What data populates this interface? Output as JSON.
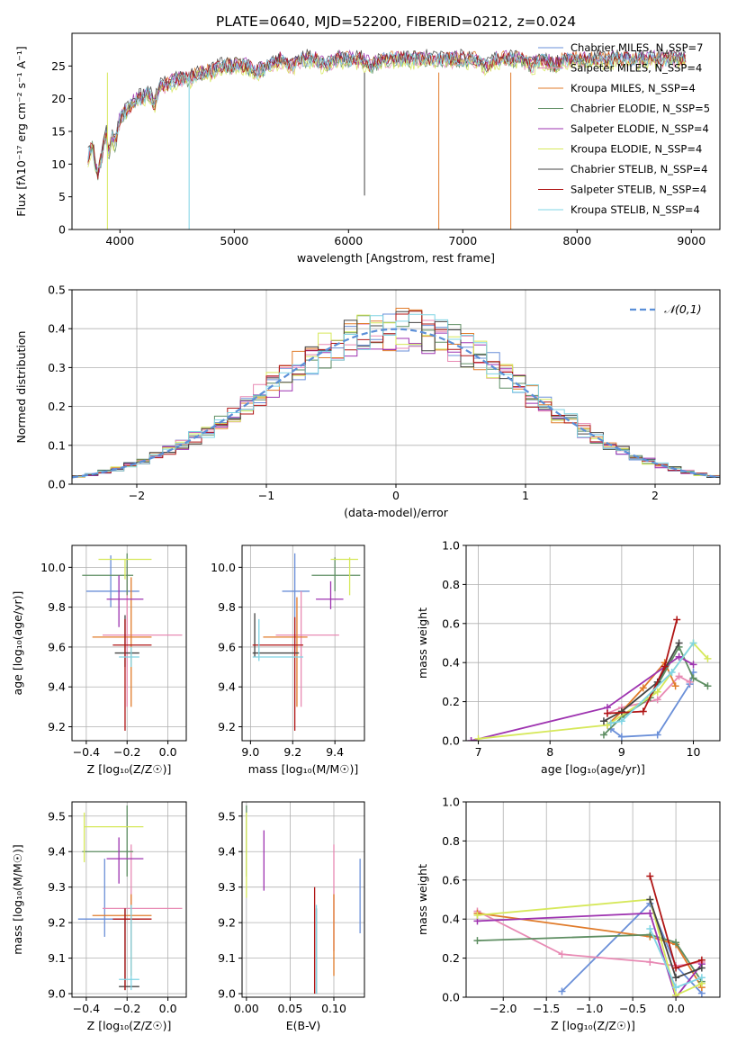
{
  "title": "PLATE=0640, MJD=52200, FIBERID=0212, z=0.024",
  "chart_data": [
    {
      "type": "line",
      "panel": "spectrum",
      "xlabel": "wavelength [Angstrom, rest frame]",
      "ylabel": "Flux [fλ10⁻¹⁷ erg cm⁻² s⁻¹ A⁻¹]",
      "xlim": [
        3580,
        9250
      ],
      "ylim": [
        0,
        30
      ],
      "xticks": [
        4000,
        5000,
        6000,
        7000,
        8000,
        9000
      ],
      "yticks": [
        0,
        5,
        10,
        15,
        20,
        25
      ],
      "grid": false,
      "legend_position": "top-right",
      "x": [
        3720,
        3760,
        3800,
        3850,
        3880,
        3900,
        3930,
        3960,
        4000,
        4050,
        4100,
        4150,
        4200,
        4250,
        4300,
        4350,
        4400,
        4500,
        4600,
        4700,
        4800,
        4900,
        5000,
        5100,
        5200,
        5300,
        5400,
        5500,
        5600,
        5700,
        5800,
        5900,
        6000,
        6100,
        6200,
        6300,
        6400,
        6500,
        6600,
        6700,
        6800,
        6900,
        7000,
        7100,
        7200,
        7300,
        7400,
        7500,
        7600,
        7700,
        7800,
        7900,
        8000,
        8200,
        8400,
        8600,
        8800,
        8950
      ],
      "base": [
        11,
        13,
        8,
        12,
        15,
        11,
        14,
        13,
        17,
        18,
        19,
        20,
        20,
        21,
        19,
        22,
        22,
        23,
        23,
        24,
        24,
        25,
        25,
        25,
        24,
        25,
        26,
        25,
        26,
        26,
        25,
        26,
        26,
        26,
        25,
        26,
        26,
        26,
        26,
        26,
        26,
        26,
        26,
        26,
        25,
        26,
        26,
        26,
        25,
        26,
        25,
        26,
        26,
        26,
        26,
        26,
        26,
        26
      ],
      "series": [
        {
          "name": "Chabrier MILES, N_SSP=7",
          "color": "#6a8fd8",
          "offset": 0.0
        },
        {
          "name": "Salpeter MILES, N_SSP=4",
          "color": "#e88ab4",
          "offset": -0.3
        },
        {
          "name": "Kroupa MILES, N_SSP=4",
          "color": "#e07b2a",
          "offset": 0.2
        },
        {
          "name": "Chabrier ELODIE, N_SSP=5",
          "color": "#5e8e62",
          "offset": -0.2
        },
        {
          "name": "Salpeter ELODIE, N_SSP=4",
          "color": "#9e33b0",
          "offset": 0.3
        },
        {
          "name": "Kroupa ELODIE, N_SSP=4",
          "color": "#d6e85a",
          "offset": -0.5
        },
        {
          "name": "Chabrier STELIB, N_SSP=4",
          "color": "#444444",
          "offset": 0.5
        },
        {
          "name": "Salpeter STELIB, N_SSP=4",
          "color": "#b01515",
          "offset": 0.1
        },
        {
          "name": "Kroupa STELIB, N_SSP=4",
          "color": "#7fd4e4",
          "offset": 0.0
        }
      ],
      "dropouts": [
        [
          3890,
          0,
          "#d6e85a"
        ],
        [
          4605,
          0,
          "#7fd4e4"
        ],
        [
          6140,
          5.2,
          "#444444"
        ],
        [
          6790,
          0,
          "#e07b2a"
        ],
        [
          7420,
          0,
          "#e07b2a"
        ]
      ]
    },
    {
      "type": "histogram",
      "panel": "residuals",
      "xlabel": "(data-model)/error",
      "ylabel": "Normed distribution",
      "xlim": [
        -2.5,
        2.5
      ],
      "ylim": [
        0,
        0.5
      ],
      "xticks": [
        -2,
        -1,
        0,
        1,
        2
      ],
      "yticks": [
        0,
        0.1,
        0.2,
        0.3,
        0.4,
        0.5
      ],
      "grid": true,
      "legend_position": "top-right",
      "legend": "𝒩(0,1)",
      "bin_width": 0.1
    },
    {
      "type": "errorbar",
      "panel": "age-Z",
      "xlabel": "Z [log₁₀(Z/Z☉)]",
      "ylabel": "age [log₁₀(age/yr)]",
      "xlim": [
        -0.47,
        0.09
      ],
      "ylim": [
        9.13,
        10.11
      ],
      "xticks": [
        -0.4,
        -0.2,
        0.0
      ],
      "yticks": [
        9.2,
        9.4,
        9.6,
        9.8,
        10.0
      ],
      "grid": true,
      "points": [
        {
          "x": -0.28,
          "y": 9.88,
          "xl": -0.4,
          "xh": -0.14,
          "yl": 9.8,
          "yh": 10.06,
          "color": "#6a8fd8"
        },
        {
          "x": -0.2,
          "y": 9.66,
          "xl": -0.32,
          "xh": 0.07,
          "yl": 9.3,
          "yh": 10.0,
          "color": "#e88ab4"
        },
        {
          "x": -0.18,
          "y": 9.65,
          "xl": -0.37,
          "xh": -0.08,
          "yl": 9.3,
          "yh": 9.95,
          "color": "#e07b2a"
        },
        {
          "x": -0.2,
          "y": 9.96,
          "xl": -0.42,
          "xh": -0.17,
          "yl": 9.86,
          "yh": 10.07,
          "color": "#5e8e62"
        },
        {
          "x": -0.24,
          "y": 9.84,
          "xl": -0.3,
          "xh": -0.12,
          "yl": 9.7,
          "yh": 9.96,
          "color": "#9e33b0"
        },
        {
          "x": -0.21,
          "y": 10.04,
          "xl": -0.34,
          "xh": -0.08,
          "yl": 9.94,
          "yh": 10.04,
          "color": "#d6e85a"
        },
        {
          "x": -0.21,
          "y": 9.57,
          "xl": -0.26,
          "xh": -0.14,
          "yl": 9.5,
          "yh": 9.76,
          "color": "#444444"
        },
        {
          "x": -0.21,
          "y": 9.61,
          "xl": -0.27,
          "xh": -0.08,
          "yl": 9.18,
          "yh": 9.74,
          "color": "#b01515"
        },
        {
          "x": -0.18,
          "y": 9.55,
          "xl": -0.24,
          "xh": -0.14,
          "yl": 9.5,
          "yh": 9.6,
          "color": "#7fd4e4"
        }
      ]
    },
    {
      "type": "errorbar",
      "panel": "age-mass",
      "xlabel": "mass [log₁₀(M/M☉)]",
      "ylabel": "",
      "xlim": [
        8.96,
        9.54
      ],
      "ylim": [
        9.13,
        10.11
      ],
      "xticks": [
        9.0,
        9.2,
        9.4
      ],
      "yticks": [
        9.2,
        9.4,
        9.6,
        9.8,
        10.0
      ],
      "grid": true,
      "points": [
        {
          "x": 9.21,
          "y": 9.88,
          "xl": 9.15,
          "xh": 9.28,
          "yl": 9.56,
          "yh": 10.07,
          "color": "#6a8fd8"
        },
        {
          "x": 9.24,
          "y": 9.66,
          "xl": 9.12,
          "xh": 9.42,
          "yl": 9.3,
          "yh": 9.88,
          "color": "#e88ab4"
        },
        {
          "x": 9.22,
          "y": 9.65,
          "xl": 9.06,
          "xh": 9.27,
          "yl": 9.3,
          "yh": 9.85,
          "color": "#e07b2a"
        },
        {
          "x": 9.4,
          "y": 9.96,
          "xl": 9.29,
          "xh": 9.52,
          "yl": 9.88,
          "yh": 10.05,
          "color": "#5e8e62"
        },
        {
          "x": 9.38,
          "y": 9.84,
          "xl": 9.31,
          "xh": 9.44,
          "yl": 9.79,
          "yh": 9.93,
          "color": "#9e33b0"
        },
        {
          "x": 9.47,
          "y": 10.04,
          "xl": 9.38,
          "xh": 9.51,
          "yl": 9.86,
          "yh": 10.05,
          "color": "#d6e85a"
        },
        {
          "x": 9.02,
          "y": 9.57,
          "xl": 9.01,
          "xh": 9.23,
          "yl": 9.55,
          "yh": 9.77,
          "color": "#444444"
        },
        {
          "x": 9.21,
          "y": 9.61,
          "xl": 9.01,
          "xh": 9.25,
          "yl": 9.18,
          "yh": 9.75,
          "color": "#b01515"
        },
        {
          "x": 9.04,
          "y": 9.55,
          "xl": 9.01,
          "xh": 9.25,
          "yl": 9.53,
          "yh": 9.74,
          "color": "#7fd4e4"
        }
      ]
    },
    {
      "type": "line",
      "panel": "weight-age",
      "xlabel": "age [log₁₀(age/yr)]",
      "ylabel": "mass weight",
      "xlim": [
        6.83,
        10.37
      ],
      "ylim": [
        0,
        1
      ],
      "xticks": [
        7,
        8,
        9,
        10
      ],
      "yticks": [
        0,
        0.2,
        0.4,
        0.6,
        0.8,
        1.0
      ],
      "grid": true,
      "series": [
        {
          "color": "#6a8fd8",
          "x": [
            8.85,
            9.0,
            9.5,
            9.95,
            10.0
          ],
          "y": [
            0.06,
            0.02,
            0.03,
            0.29,
            0.35
          ]
        },
        {
          "color": "#e88ab4",
          "x": [
            8.8,
            9.0,
            9.5,
            9.8,
            9.95
          ],
          "y": [
            0.14,
            0.17,
            0.21,
            0.33,
            0.3
          ]
        },
        {
          "color": "#e07b2a",
          "x": [
            8.8,
            9.0,
            9.3,
            9.6,
            9.75
          ],
          "y": [
            0.08,
            0.15,
            0.27,
            0.4,
            0.28
          ]
        },
        {
          "color": "#5e8e62",
          "x": [
            8.75,
            9.0,
            9.4,
            9.8,
            10.0,
            10.2
          ],
          "y": [
            0.03,
            0.12,
            0.22,
            0.48,
            0.32,
            0.28
          ]
        },
        {
          "color": "#9e33b0",
          "x": [
            6.9,
            8.8,
            9.8,
            10.0
          ],
          "y": [
            0.0,
            0.17,
            0.43,
            0.39
          ]
        },
        {
          "color": "#d6e85a",
          "x": [
            7.0,
            8.8,
            9.5,
            10.0,
            10.2
          ],
          "y": [
            0.01,
            0.08,
            0.25,
            0.5,
            0.42
          ]
        },
        {
          "color": "#444444",
          "x": [
            8.75,
            9.0,
            9.5,
            9.8
          ],
          "y": [
            0.1,
            0.15,
            0.3,
            0.5
          ]
        },
        {
          "color": "#b01515",
          "x": [
            8.8,
            9.3,
            9.6,
            9.77
          ],
          "y": [
            0.14,
            0.15,
            0.38,
            0.62
          ]
        },
        {
          "color": "#7fd4e4",
          "x": [
            8.85,
            9.0,
            9.7,
            10.0
          ],
          "y": [
            0.09,
            0.1,
            0.35,
            0.5
          ]
        }
      ]
    },
    {
      "type": "errorbar",
      "panel": "mass-Z",
      "xlabel": "Z [log₁₀(Z/Z☉)]",
      "ylabel": "mass [log₁₀(M/M☉)]",
      "xlim": [
        -0.47,
        0.09
      ],
      "ylim": [
        8.99,
        9.54
      ],
      "xticks": [
        -0.4,
        -0.2,
        0.0
      ],
      "yticks": [
        9.0,
        9.1,
        9.2,
        9.3,
        9.4,
        9.5
      ],
      "grid": true,
      "points": [
        {
          "x": -0.31,
          "y": 9.21,
          "xl": -0.44,
          "xh": -0.14,
          "yl": 9.16,
          "yh": 9.38,
          "color": "#6a8fd8"
        },
        {
          "x": -0.18,
          "y": 9.24,
          "xl": -0.32,
          "xh": 0.07,
          "yl": 9.12,
          "yh": 9.42,
          "color": "#e88ab4"
        },
        {
          "x": -0.18,
          "y": 9.22,
          "xl": -0.37,
          "xh": -0.08,
          "yl": 9.05,
          "yh": 9.28,
          "color": "#e07b2a"
        },
        {
          "x": -0.2,
          "y": 9.4,
          "xl": -0.42,
          "xh": -0.17,
          "yl": 9.33,
          "yh": 9.53,
          "color": "#5e8e62"
        },
        {
          "x": -0.24,
          "y": 9.38,
          "xl": -0.3,
          "xh": -0.12,
          "yl": 9.31,
          "yh": 9.44,
          "color": "#9e33b0"
        },
        {
          "x": -0.41,
          "y": 9.47,
          "xl": -0.41,
          "xh": -0.12,
          "yl": 9.37,
          "yh": 9.51,
          "color": "#d6e85a"
        },
        {
          "x": -0.21,
          "y": 9.02,
          "xl": -0.24,
          "xh": -0.14,
          "yl": 9.01,
          "yh": 9.24,
          "color": "#444444"
        },
        {
          "x": -0.21,
          "y": 9.21,
          "xl": -0.27,
          "xh": -0.08,
          "yl": 9.01,
          "yh": 9.24,
          "color": "#b01515"
        },
        {
          "x": -0.18,
          "y": 9.04,
          "xl": -0.24,
          "xh": -0.14,
          "yl": 9.01,
          "yh": 9.25,
          "color": "#7fd4e4"
        }
      ]
    },
    {
      "type": "errorbar",
      "panel": "mass-EBV",
      "xlabel": "E(B-V)",
      "ylabel": "",
      "xlim": [
        -0.005,
        0.135
      ],
      "ylim": [
        8.99,
        9.54
      ],
      "xticks": [
        0.0,
        0.05,
        0.1
      ],
      "yticks": [
        9.0,
        9.1,
        9.2,
        9.3,
        9.4,
        9.5
      ],
      "grid": true,
      "points": [
        {
          "x": 0.13,
          "y": 9.21,
          "xl": 0.13,
          "xh": 0.13,
          "yl": 9.17,
          "yh": 9.38,
          "color": "#6a8fd8"
        },
        {
          "x": 0.1,
          "y": 9.24,
          "xl": 0.1,
          "xh": 0.1,
          "yl": 9.12,
          "yh": 9.42,
          "color": "#e88ab4"
        },
        {
          "x": 0.1,
          "y": 9.22,
          "xl": 0.1,
          "xh": 0.1,
          "yl": 9.05,
          "yh": 9.28,
          "color": "#e07b2a"
        },
        {
          "x": 0.0,
          "y": 9.4,
          "xl": 0.0,
          "xh": 0.0,
          "yl": 9.33,
          "yh": 9.53,
          "color": "#5e8e62"
        },
        {
          "x": 0.02,
          "y": 9.38,
          "xl": 0.02,
          "xh": 0.02,
          "yl": 9.29,
          "yh": 9.46,
          "color": "#9e33b0"
        },
        {
          "x": 0.0,
          "y": 9.47,
          "xl": 0.0,
          "xh": 0.0,
          "yl": 9.27,
          "yh": 9.51,
          "color": "#d6e85a"
        },
        {
          "x": 0.08,
          "y": 9.02,
          "xl": 0.08,
          "xh": 0.08,
          "yl": 9.0,
          "yh": 9.24,
          "color": "#444444"
        },
        {
          "x": 0.078,
          "y": 9.21,
          "xl": 0.078,
          "xh": 0.078,
          "yl": 9.0,
          "yh": 9.3,
          "color": "#b01515"
        },
        {
          "x": 0.08,
          "y": 9.04,
          "xl": 0.08,
          "xh": 0.08,
          "yl": 9.0,
          "yh": 9.25,
          "color": "#7fd4e4"
        }
      ]
    },
    {
      "type": "line",
      "panel": "weight-Z",
      "xlabel": "Z [log₁₀(Z/Z☉)]",
      "ylabel": "mass weight",
      "xlim": [
        -2.43,
        0.51
      ],
      "ylim": [
        0,
        1
      ],
      "xticks": [
        -2.0,
        -1.5,
        -1.0,
        -0.5,
        0.0
      ],
      "yticks": [
        0,
        0.2,
        0.4,
        0.6,
        0.8,
        1.0
      ],
      "grid": true,
      "series": [
        {
          "color": "#6a8fd8",
          "x": [
            -1.32,
            -0.3,
            0.0,
            0.3
          ],
          "y": [
            0.03,
            0.48,
            0.16,
            0.02
          ]
        },
        {
          "color": "#e88ab4",
          "x": [
            -2.3,
            -1.32,
            -0.3,
            0.0,
            0.3
          ],
          "y": [
            0.44,
            0.22,
            0.18,
            0.16,
            0.18
          ]
        },
        {
          "color": "#e07b2a",
          "x": [
            -2.3,
            -0.3,
            0.0,
            0.3
          ],
          "y": [
            0.43,
            0.31,
            0.27,
            0.05
          ]
        },
        {
          "color": "#5e8e62",
          "x": [
            -2.3,
            -0.3,
            0.0,
            0.3
          ],
          "y": [
            0.29,
            0.32,
            0.28,
            0.08
          ]
        },
        {
          "color": "#9e33b0",
          "x": [
            -2.3,
            -0.3,
            0.0,
            0.3
          ],
          "y": [
            0.39,
            0.43,
            0.0,
            0.17
          ]
        },
        {
          "color": "#d6e85a",
          "x": [
            -2.3,
            -0.3,
            0.0,
            0.3
          ],
          "y": [
            0.42,
            0.5,
            0.01,
            0.07
          ]
        },
        {
          "color": "#444444",
          "x": [
            -0.3,
            0.0,
            0.3
          ],
          "y": [
            0.5,
            0.1,
            0.15
          ]
        },
        {
          "color": "#b01515",
          "x": [
            -0.3,
            0.0,
            0.3
          ],
          "y": [
            0.62,
            0.15,
            0.19
          ]
        },
        {
          "color": "#7fd4e4",
          "x": [
            -0.3,
            0.0,
            0.3
          ],
          "y": [
            0.35,
            0.05,
            0.1
          ]
        }
      ]
    }
  ]
}
